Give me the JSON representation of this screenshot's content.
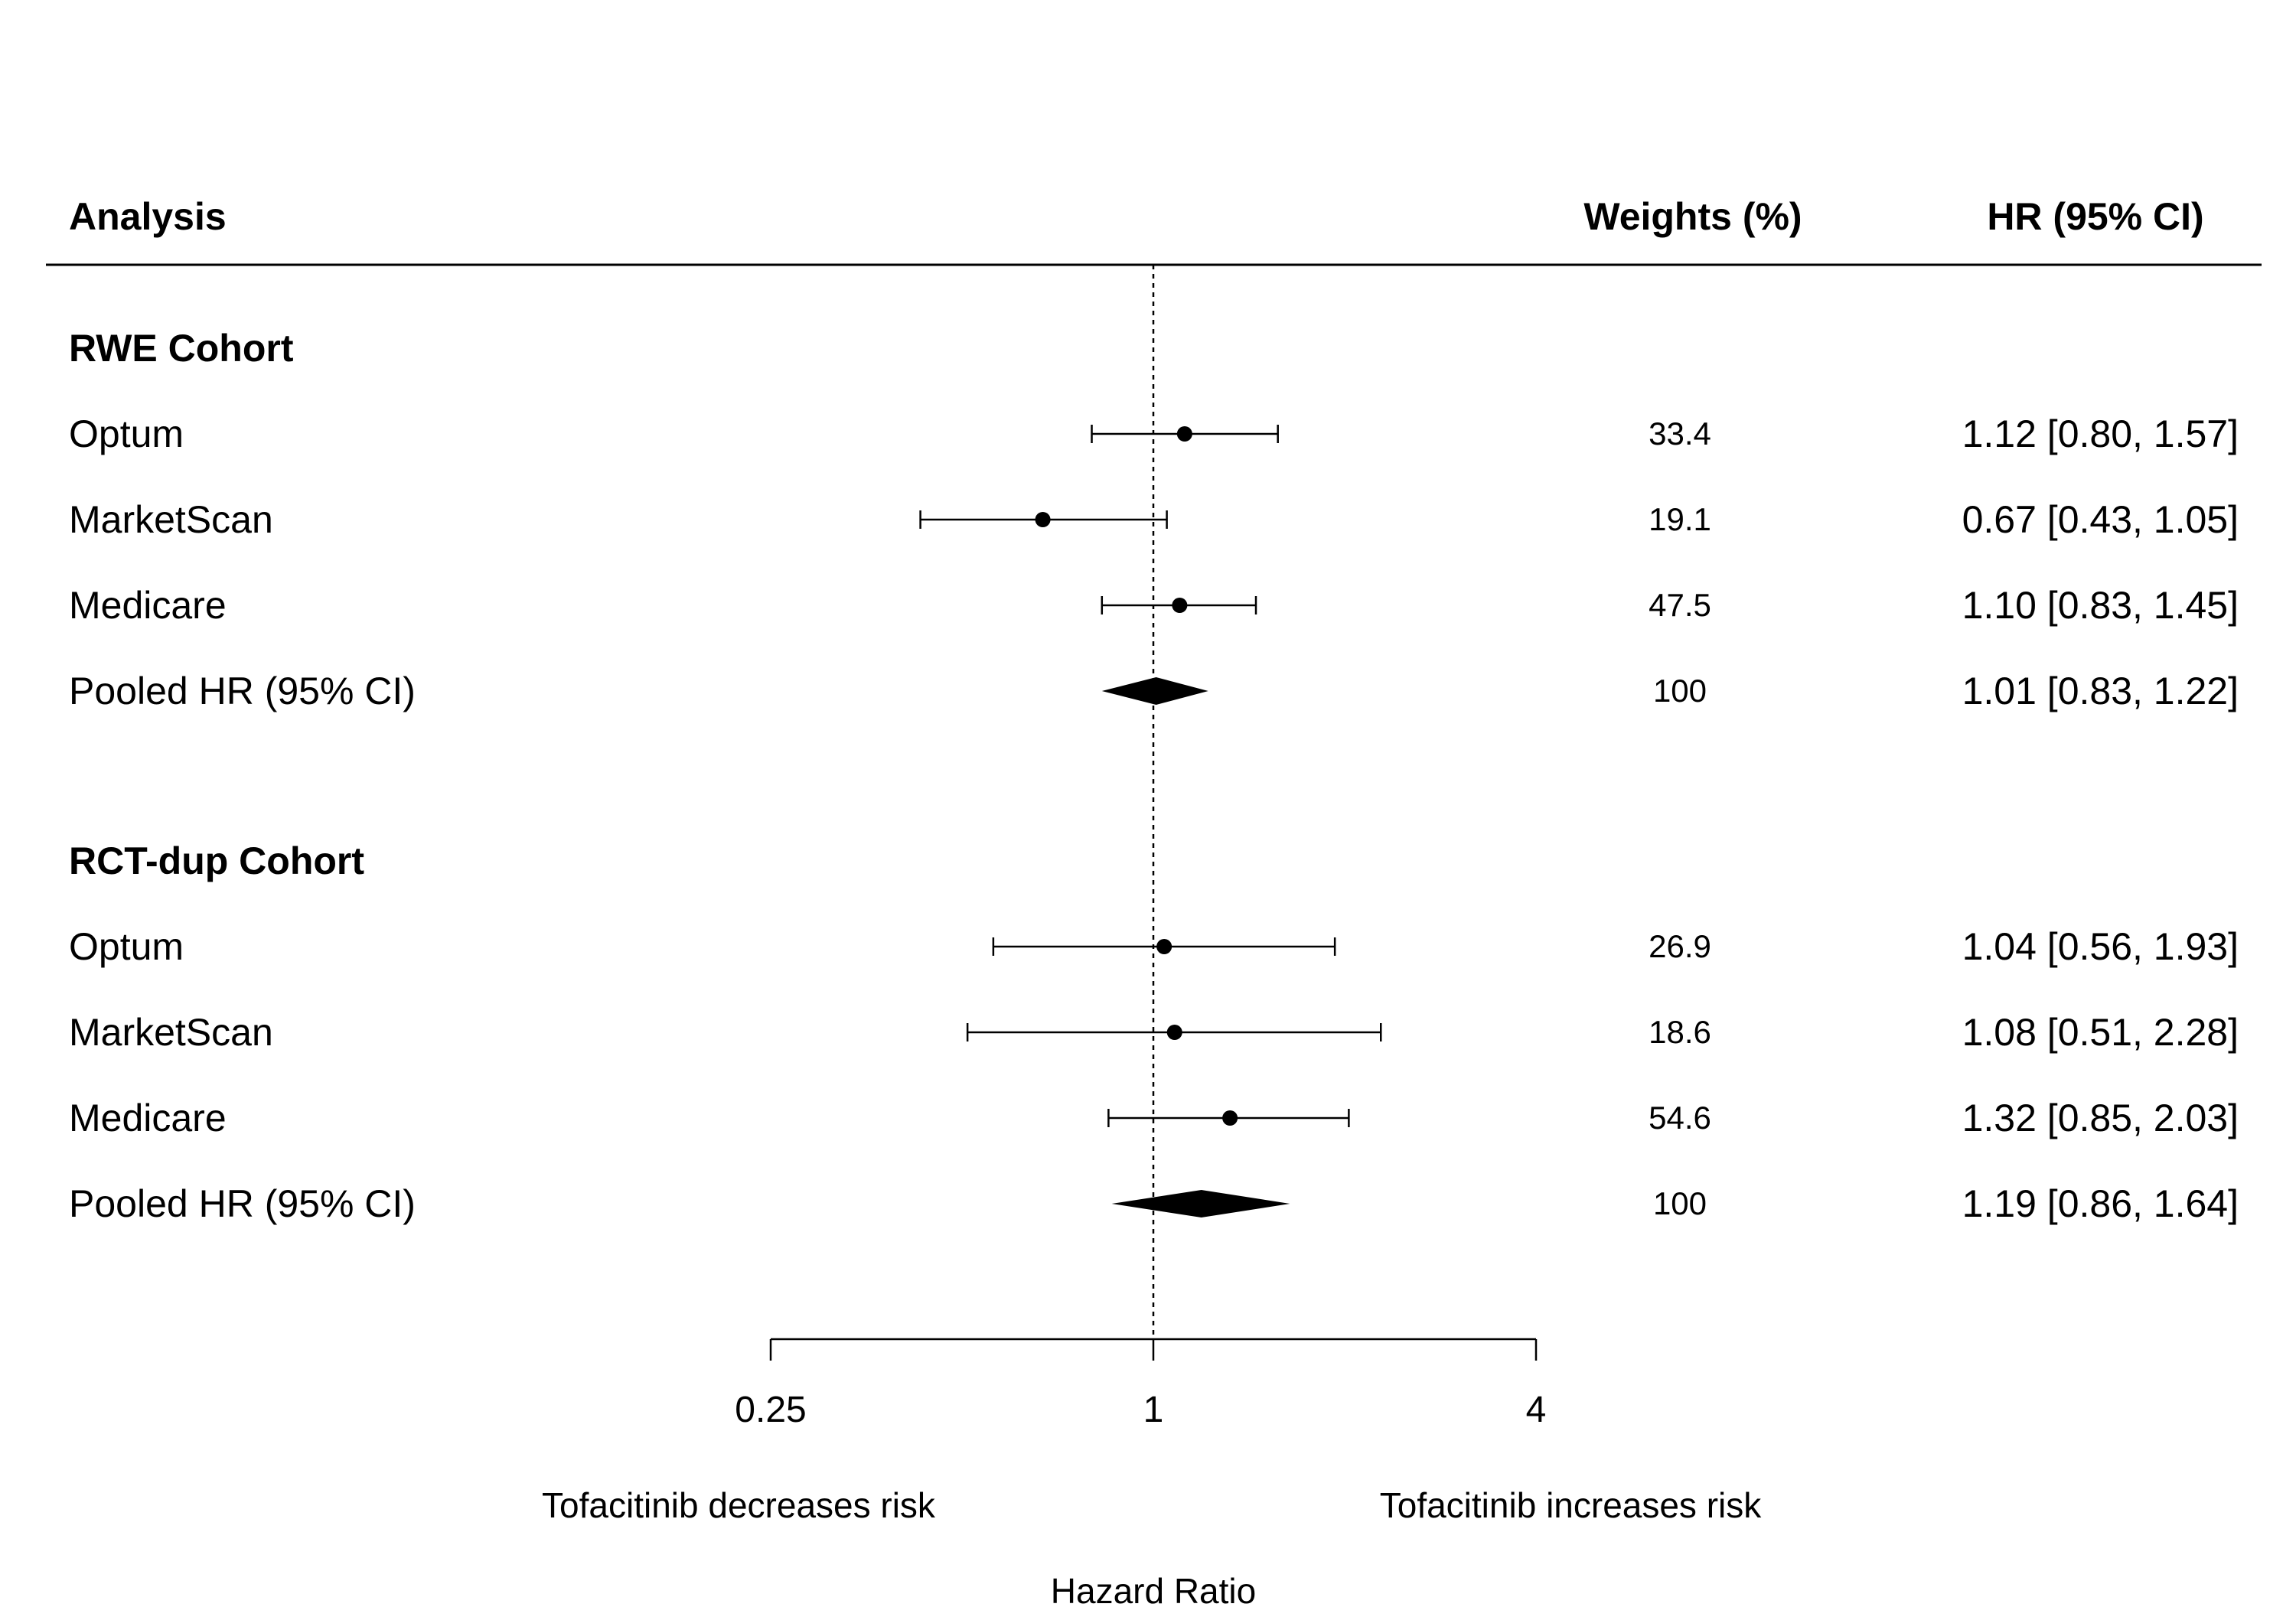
{
  "headers": {
    "analysis": "Analysis",
    "weights": "Weights (%)",
    "hr": "HR (95% CI)"
  },
  "chart_data": {
    "type": "forest",
    "xscale": "log2",
    "xlim": [
      0.25,
      4
    ],
    "xticks": [
      "0.25",
      "1",
      "4"
    ],
    "reference_line": 1,
    "xlabel": "Hazard Ratio",
    "direction_left": "Tofacitinib decreases risk",
    "direction_right": "Tofacitinib increases risk",
    "groups": [
      {
        "name": "RWE Cohort",
        "rows": [
          {
            "label": "Optum",
            "hr": 1.12,
            "lo": 0.8,
            "hi": 1.57,
            "weight": "33.4",
            "ci_text": "1.12 [0.80, 1.57]",
            "pooled": false
          },
          {
            "label": "MarketScan",
            "hr": 0.67,
            "lo": 0.43,
            "hi": 1.05,
            "weight": "19.1",
            "ci_text": "0.67 [0.43, 1.05]",
            "pooled": false
          },
          {
            "label": "Medicare",
            "hr": 1.1,
            "lo": 0.83,
            "hi": 1.45,
            "weight": "47.5",
            "ci_text": "1.10 [0.83, 1.45]",
            "pooled": false
          },
          {
            "label": "Pooled HR (95% CI)",
            "hr": 1.01,
            "lo": 0.83,
            "hi": 1.22,
            "weight": "100",
            "ci_text": "1.01 [0.83, 1.22]",
            "pooled": true
          }
        ]
      },
      {
        "name": "RCT-dup Cohort",
        "rows": [
          {
            "label": "Optum",
            "hr": 1.04,
            "lo": 0.56,
            "hi": 1.93,
            "weight": "26.9",
            "ci_text": "1.04 [0.56, 1.93]",
            "pooled": false
          },
          {
            "label": "MarketScan",
            "hr": 1.08,
            "lo": 0.51,
            "hi": 2.28,
            "weight": "18.6",
            "ci_text": "1.08 [0.51, 2.28]",
            "pooled": false
          },
          {
            "label": "Medicare",
            "hr": 1.32,
            "lo": 0.85,
            "hi": 2.03,
            "weight": "54.6",
            "ci_text": "1.32 [0.85, 2.03]",
            "pooled": false
          },
          {
            "label": "Pooled HR (95% CI)",
            "hr": 1.19,
            "lo": 0.86,
            "hi": 1.64,
            "weight": "100",
            "ci_text": "1.19 [0.86, 1.64]",
            "pooled": true
          }
        ]
      }
    ]
  }
}
